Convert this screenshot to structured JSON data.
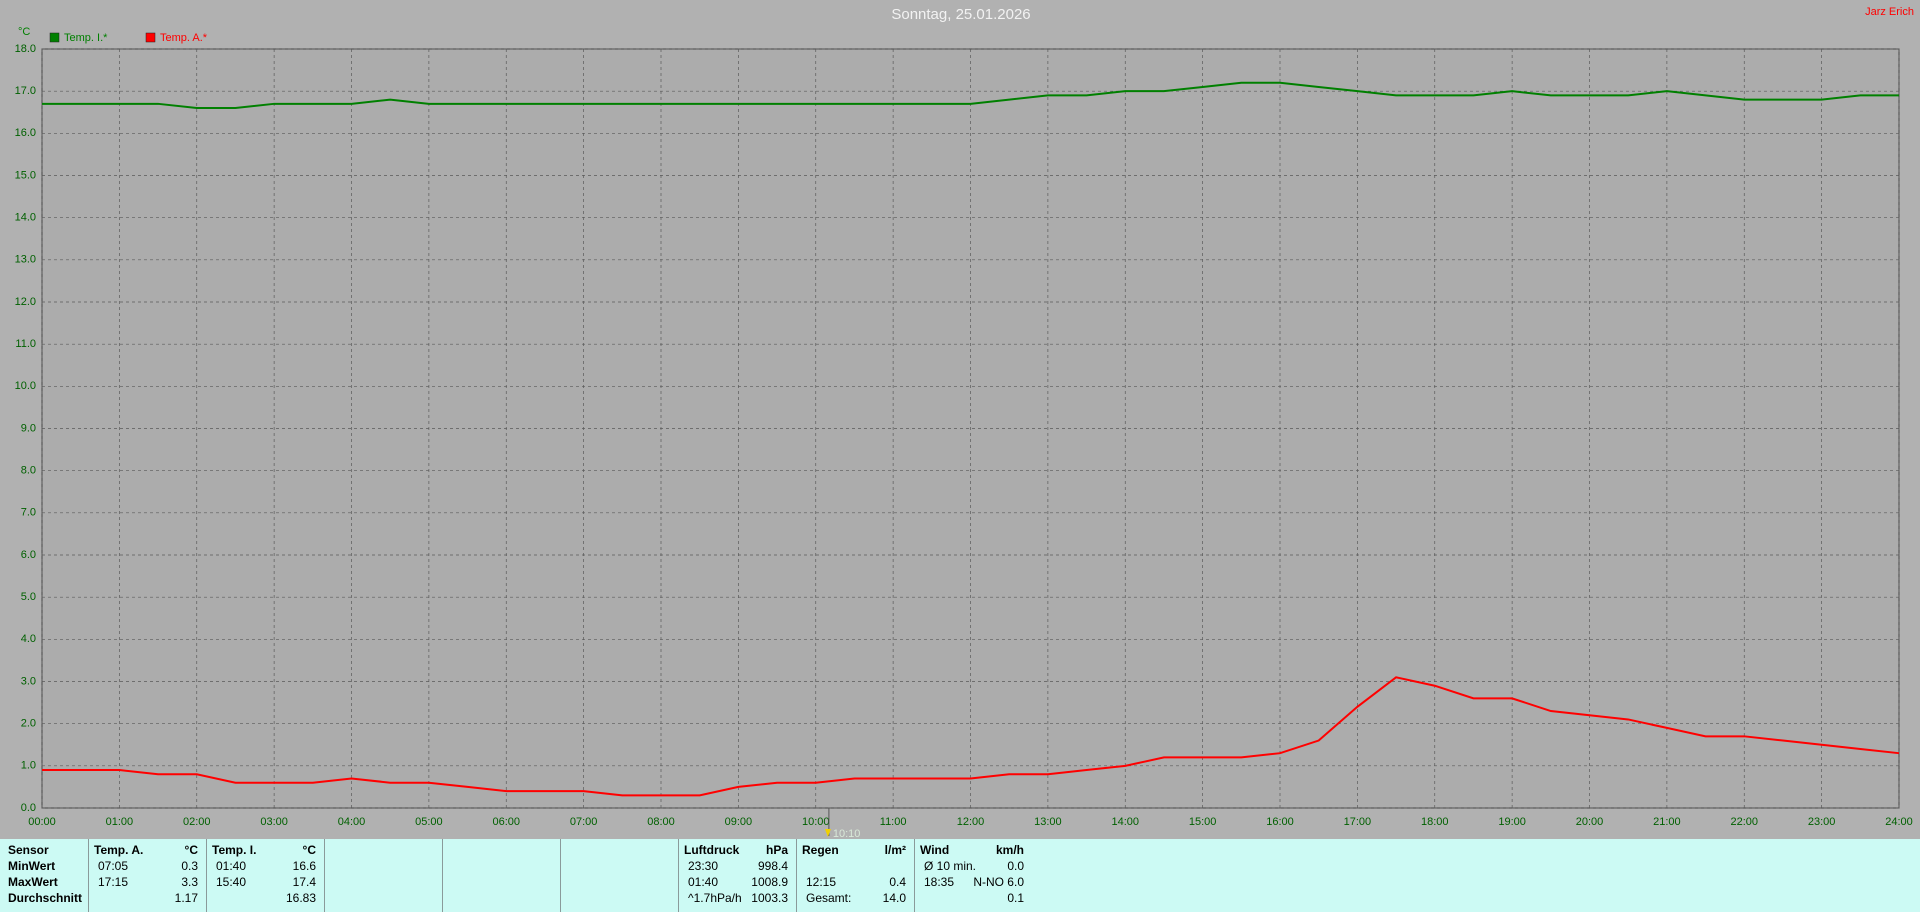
{
  "chart_data": {
    "type": "line",
    "title": "Sonntag, 25.01.2026",
    "y_unit": "°C",
    "author": "Jarz Erich",
    "x": [
      0,
      0.5,
      1,
      1.5,
      2,
      2.5,
      3,
      3.5,
      4,
      4.5,
      5,
      5.5,
      6,
      6.5,
      7,
      7.5,
      8,
      8.5,
      9,
      9.5,
      10,
      10.5,
      11,
      11.5,
      12,
      12.5,
      13,
      13.5,
      14,
      14.5,
      15,
      15.5,
      16,
      16.5,
      17,
      17.5,
      18,
      18.5,
      19,
      19.5,
      20,
      20.5,
      21,
      21.5,
      22,
      22.5,
      23,
      23.5,
      24
    ],
    "series": [
      {
        "name": "Temp. I.*",
        "color": "#008000",
        "values": [
          16.7,
          16.7,
          16.7,
          16.7,
          16.6,
          16.6,
          16.7,
          16.7,
          16.7,
          16.8,
          16.7,
          16.7,
          16.7,
          16.7,
          16.7,
          16.7,
          16.7,
          16.7,
          16.7,
          16.7,
          16.7,
          16.7,
          16.7,
          16.7,
          16.7,
          16.8,
          16.9,
          16.9,
          17.0,
          17.0,
          17.1,
          17.2,
          17.2,
          17.1,
          17.0,
          16.9,
          16.9,
          16.9,
          17.0,
          16.9,
          16.9,
          16.9,
          17.0,
          16.9,
          16.8,
          16.8,
          16.8,
          16.9,
          16.9
        ]
      },
      {
        "name": "Temp. A.*",
        "color": "#ff0000",
        "values": [
          0.9,
          0.9,
          0.9,
          0.8,
          0.8,
          0.6,
          0.6,
          0.6,
          0.7,
          0.6,
          0.6,
          0.5,
          0.4,
          0.4,
          0.4,
          0.3,
          0.3,
          0.3,
          0.5,
          0.6,
          0.6,
          0.7,
          0.7,
          0.7,
          0.7,
          0.8,
          0.8,
          0.9,
          1.0,
          1.2,
          1.2,
          1.2,
          1.3,
          1.6,
          2.4,
          3.1,
          2.9,
          2.6,
          2.6,
          2.3,
          2.2,
          2.1,
          1.9,
          1.7,
          1.7,
          1.6,
          1.5,
          1.4,
          1.3
        ]
      }
    ],
    "xlim": [
      0,
      24
    ],
    "ylim": [
      0,
      18
    ],
    "xticks": [
      {
        "value": 0,
        "label": "00:00"
      },
      {
        "value": 1,
        "label": "01:00"
      },
      {
        "value": 2,
        "label": "02:00"
      },
      {
        "value": 3,
        "label": "03:00"
      },
      {
        "value": 4,
        "label": "04:00"
      },
      {
        "value": 5,
        "label": "05:00"
      },
      {
        "value": 6,
        "label": "06:00"
      },
      {
        "value": 7,
        "label": "07:00"
      },
      {
        "value": 8,
        "label": "08:00"
      },
      {
        "value": 9,
        "label": "09:00"
      },
      {
        "value": 10,
        "label": "10:00"
      },
      {
        "value": 11,
        "label": "11:00"
      },
      {
        "value": 12,
        "label": "12:00"
      },
      {
        "value": 13,
        "label": "13:00"
      },
      {
        "value": 14,
        "label": "14:00"
      },
      {
        "value": 15,
        "label": "15:00"
      },
      {
        "value": 16,
        "label": "16:00"
      },
      {
        "value": 17,
        "label": "17:00"
      },
      {
        "value": 18,
        "label": "18:00"
      },
      {
        "value": 19,
        "label": "19:00"
      },
      {
        "value": 20,
        "label": "20:00"
      },
      {
        "value": 21,
        "label": "21:00"
      },
      {
        "value": 22,
        "label": "22:00"
      },
      {
        "value": 23,
        "label": "23:00"
      },
      {
        "value": 24,
        "label": "24:00"
      }
    ],
    "yticks": [
      {
        "value": 0,
        "label": "0.0"
      },
      {
        "value": 1,
        "label": "1.0"
      },
      {
        "value": 2,
        "label": "2.0"
      },
      {
        "value": 3,
        "label": "3.0"
      },
      {
        "value": 4,
        "label": "4.0"
      },
      {
        "value": 5,
        "label": "5.0"
      },
      {
        "value": 6,
        "label": "6.0"
      },
      {
        "value": 7,
        "label": "7.0"
      },
      {
        "value": 8,
        "label": "8.0"
      },
      {
        "value": 9,
        "label": "9.0"
      },
      {
        "value": 10,
        "label": "10.0"
      },
      {
        "value": 11,
        "label": "11.0"
      },
      {
        "value": 12,
        "label": "12.0"
      },
      {
        "value": 13,
        "label": "13.0"
      },
      {
        "value": 14,
        "label": "14.0"
      },
      {
        "value": 15,
        "label": "15.0"
      },
      {
        "value": 16,
        "label": "16.0"
      },
      {
        "value": 17,
        "label": "17.0"
      },
      {
        "value": 18,
        "label": "18.0"
      }
    ],
    "grid": true,
    "marker": {
      "x": 10.17,
      "label": "10:10"
    }
  },
  "summary": {
    "row_labels": [
      "Sensor",
      "MinWert",
      "MaxWert",
      "Durchschnitt"
    ],
    "blocks": [
      {
        "slot": 1,
        "header": [
          "Temp. A.",
          "°C"
        ],
        "rows": [
          [
            "07:05",
            "0.3"
          ],
          [
            "17:15",
            "3.3"
          ],
          [
            null,
            "1.17"
          ]
        ]
      },
      {
        "slot": 2,
        "header": [
          "Temp. I.",
          "°C"
        ],
        "rows": [
          [
            "01:40",
            "16.6"
          ],
          [
            "15:40",
            "17.4"
          ],
          [
            null,
            "16.83"
          ]
        ]
      },
      {
        "slot": 6,
        "header": [
          "Luftdruck",
          "hPa"
        ],
        "rows": [
          [
            "23:30",
            "998.4"
          ],
          [
            "01:40",
            "1008.9"
          ],
          [
            "^1.7hPa/h",
            "1003.3"
          ]
        ]
      },
      {
        "slot": 7,
        "header": [
          "Regen",
          "l/m²"
        ],
        "rows": [
          [
            null,
            null
          ],
          [
            "12:15",
            "0.4"
          ],
          [
            "Gesamt:",
            "14.0"
          ]
        ]
      },
      {
        "slot": 8,
        "header": [
          "Wind",
          "km/h"
        ],
        "rows": [
          [
            "Ø 10 min.",
            "0.0"
          ],
          [
            "18:35",
            "N-NO 6.0"
          ],
          [
            null,
            "0.1"
          ]
        ]
      }
    ]
  }
}
